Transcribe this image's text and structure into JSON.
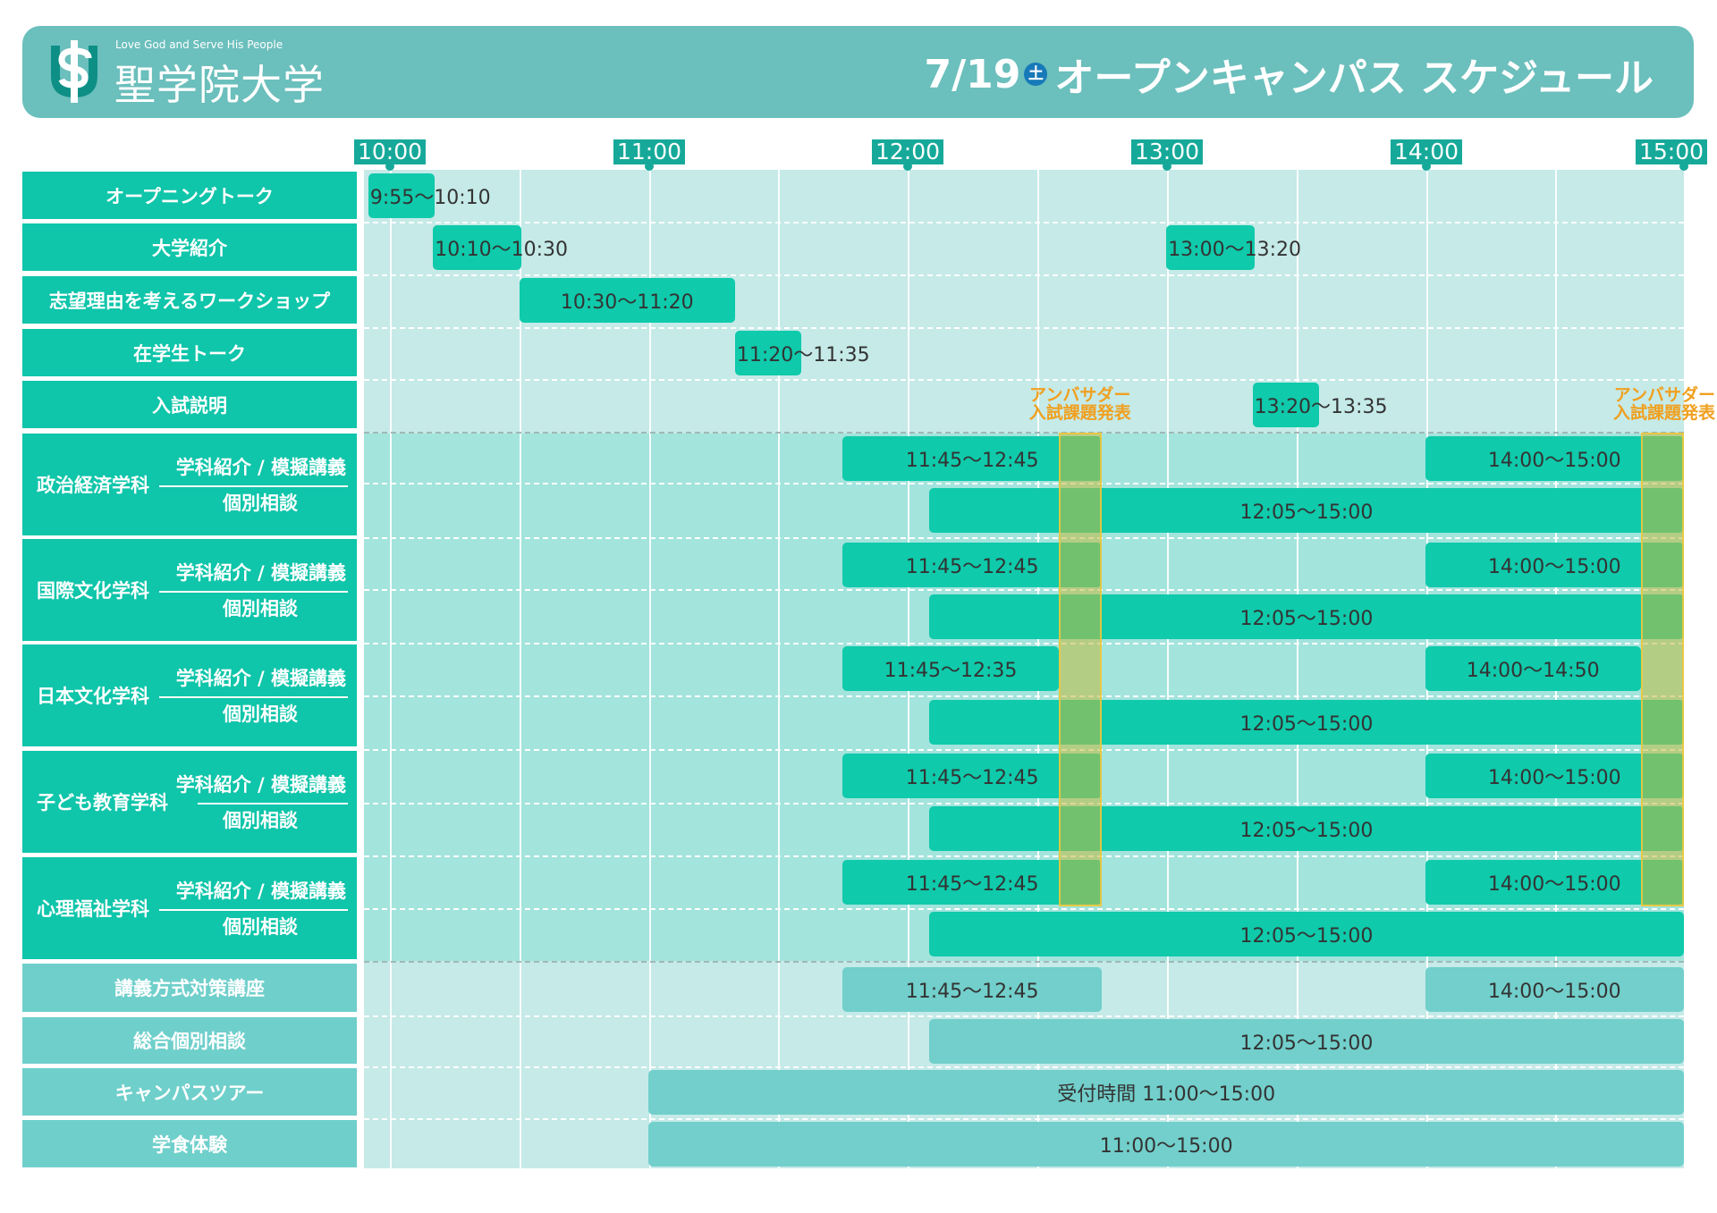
{
  "header": {
    "tagline": "Love God and Serve His People",
    "university": "聖学院大学",
    "date": "7/19",
    "day_badge": "土",
    "title": "オープンキャンパス スケジュール",
    "logo": "seigakuin-logo"
  },
  "colors": {
    "header_bg": "#6bbfbc",
    "grid_bg": "#c5eae8",
    "focus_band": "#a3e4dd",
    "label_main": "#0fc5aa",
    "label_extra": "#6fcfcb",
    "bar_main": "#0fcaab",
    "bar_extra": "#72cfcb",
    "time_label": "#16a99a",
    "ambassador_text": "#f0a020",
    "ambassador_col": "#c3b93c"
  },
  "chart_data": {
    "type": "gantt",
    "time_axis": [
      "10:00",
      "11:00",
      "12:00",
      "13:00",
      "14:00",
      "15:00"
    ],
    "axis_range": [
      "9:50",
      "15:05"
    ],
    "rows": [
      {
        "id": "opening",
        "label": "オープニングトーク",
        "group": "main",
        "bars": [
          {
            "start": "9:55",
            "end": "10:10",
            "text": "9:55〜10:10"
          }
        ]
      },
      {
        "id": "intro",
        "label": "大学紹介",
        "group": "main",
        "bars": [
          {
            "start": "10:10",
            "end": "10:30",
            "text": "10:10〜10:30"
          },
          {
            "start": "13:00",
            "end": "13:20",
            "text": "13:00〜13:20"
          }
        ]
      },
      {
        "id": "workshop",
        "label": "志望理由を考えるワークショップ",
        "group": "main",
        "bars": [
          {
            "start": "10:30",
            "end": "11:20",
            "text": "10:30〜11:20"
          }
        ]
      },
      {
        "id": "student-talk",
        "label": "在学生トーク",
        "group": "main",
        "bars": [
          {
            "start": "11:20",
            "end": "11:35",
            "text": "11:20〜11:35"
          }
        ]
      },
      {
        "id": "admission",
        "label": "入試説明",
        "group": "main",
        "bars": [
          {
            "start": "13:20",
            "end": "13:35",
            "text": "13:20〜13:35"
          }
        ]
      },
      {
        "id": "pol-lec",
        "group": "dept",
        "bars": [
          {
            "start": "11:45",
            "end": "12:45",
            "text": "11:45〜12:45"
          },
          {
            "start": "14:00",
            "end": "15:00",
            "text": "14:00〜15:00"
          }
        ]
      },
      {
        "id": "pol-con",
        "group": "dept",
        "bars": [
          {
            "start": "12:05",
            "end": "15:00",
            "text": "12:05〜15:00"
          }
        ]
      },
      {
        "id": "intl-lec",
        "group": "dept",
        "bars": [
          {
            "start": "11:45",
            "end": "12:45",
            "text": "11:45〜12:45"
          },
          {
            "start": "14:00",
            "end": "15:00",
            "text": "14:00〜15:00"
          }
        ]
      },
      {
        "id": "intl-con",
        "group": "dept",
        "bars": [
          {
            "start": "12:05",
            "end": "15:00",
            "text": "12:05〜15:00"
          }
        ]
      },
      {
        "id": "jpn-lec",
        "group": "dept",
        "bars": [
          {
            "start": "11:45",
            "end": "12:35",
            "text": "11:45〜12:35"
          },
          {
            "start": "14:00",
            "end": "14:50",
            "text": "14:00〜14:50"
          }
        ]
      },
      {
        "id": "jpn-con",
        "group": "dept",
        "bars": [
          {
            "start": "12:05",
            "end": "15:00",
            "text": "12:05〜15:00"
          }
        ]
      },
      {
        "id": "child-lec",
        "group": "dept",
        "bars": [
          {
            "start": "11:45",
            "end": "12:45",
            "text": "11:45〜12:45"
          },
          {
            "start": "14:00",
            "end": "15:00",
            "text": "14:00〜15:00"
          }
        ]
      },
      {
        "id": "child-con",
        "group": "dept",
        "bars": [
          {
            "start": "12:05",
            "end": "15:00",
            "text": "12:05〜15:00"
          }
        ]
      },
      {
        "id": "psy-lec",
        "group": "dept",
        "bars": [
          {
            "start": "11:45",
            "end": "12:45",
            "text": "11:45〜12:45"
          },
          {
            "start": "14:00",
            "end": "15:00",
            "text": "14:00〜15:00"
          }
        ]
      },
      {
        "id": "psy-con",
        "group": "dept",
        "bars": [
          {
            "start": "12:05",
            "end": "15:00",
            "text": "12:05〜15:00"
          }
        ]
      },
      {
        "id": "lecture-prep",
        "label": "講義方式対策講座",
        "group": "extra",
        "bars": [
          {
            "start": "11:45",
            "end": "12:45",
            "text": "11:45〜12:45"
          },
          {
            "start": "14:00",
            "end": "15:00",
            "text": "14:00〜15:00"
          }
        ]
      },
      {
        "id": "general-con",
        "label": "総合個別相談",
        "group": "extra",
        "bars": [
          {
            "start": "12:05",
            "end": "15:00",
            "text": "12:05〜15:00"
          }
        ]
      },
      {
        "id": "tour",
        "label": "キャンパスツアー",
        "group": "extra",
        "bars": [
          {
            "start": "11:00",
            "end": "15:00",
            "text": "受付時間 11:00〜15:00"
          }
        ]
      },
      {
        "id": "cafeteria",
        "label": "学食体験",
        "group": "extra",
        "bars": [
          {
            "start": "11:00",
            "end": "15:00",
            "text": "11:00〜15:00"
          }
        ]
      }
    ],
    "departments": [
      {
        "name": "政治経済学科",
        "sub1": "学科紹介 / 模擬講義",
        "sub2": "個別相談"
      },
      {
        "name": "国際文化学科",
        "sub1": "学科紹介 / 模擬講義",
        "sub2": "個別相談"
      },
      {
        "name": "日本文化学科",
        "sub1": "学科紹介 / 模擬講義",
        "sub2": "個別相談"
      },
      {
        "name": "子ども教育学科",
        "sub1": "学科紹介 / 模擬講義",
        "sub2": "個別相談"
      },
      {
        "name": "心理福祉学科",
        "sub1": "学科紹介 / 模擬講義",
        "sub2": "個別相談"
      }
    ],
    "ambassador": [
      {
        "start": "12:35",
        "end": "12:45",
        "line1": "アンバサダー",
        "line2": "入試課題発表"
      },
      {
        "start": "14:50",
        "end": "15:00",
        "line1": "アンバサダー",
        "line2": "入試課題発表"
      }
    ]
  }
}
